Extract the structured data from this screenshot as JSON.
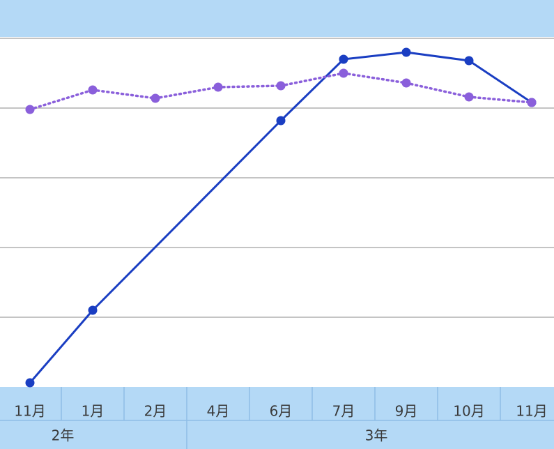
{
  "chart_data": {
    "type": "line",
    "categories": [
      "11月",
      "1月",
      "2月",
      "4月",
      "6月",
      "7月",
      "9月",
      "10月",
      "11月"
    ],
    "groups": [
      "2年",
      "3年"
    ],
    "series": [
      {
        "color": "#1a3ec2",
        "dash": "solid",
        "values": [
          0.06,
          1.1,
          null,
          null,
          3.82,
          4.7,
          4.8,
          4.68,
          4.08
        ]
      },
      {
        "color": "#8a5fdb",
        "dash": "dotted",
        "values": [
          3.98,
          4.26,
          4.14,
          4.3,
          4.32,
          4.5,
          4.36,
          4.16,
          4.08
        ]
      }
    ],
    "connect_gaps": true,
    "ylim": [
      0,
      5
    ],
    "yticks": [
      1,
      2,
      3,
      4,
      5
    ],
    "grid": true
  }
}
